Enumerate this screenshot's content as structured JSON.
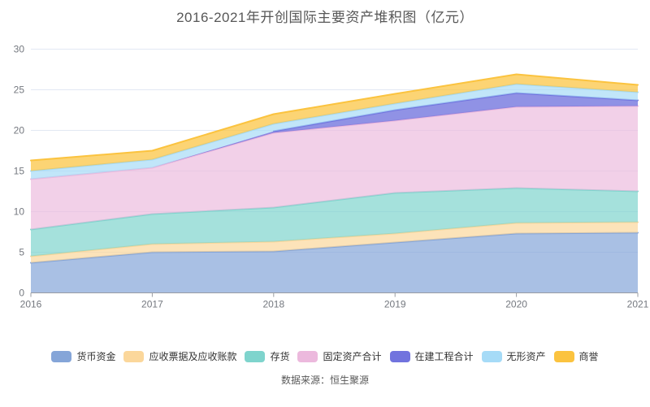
{
  "title": "2016-2021年开创国际主要资产堆积图（亿元）",
  "source": "数据来源：恒生聚源",
  "legend": {
    "items": [
      "货币资金",
      "应收票据及应收账款",
      "存货",
      "固定资产合计",
      "在建工程合计",
      "无形资产",
      "商誉"
    ]
  },
  "colors": {
    "grid_line": "#e2e8f3",
    "axis_line": "#999ca3",
    "axis_label": "#74787f",
    "title_text": "#575757",
    "legend_text": "#333333",
    "source_text": "#595959",
    "background": "#ffffff"
  },
  "chart_data": {
    "type": "area",
    "stacked": true,
    "title": "2016-2021年开创国际主要资产堆积图（亿元）",
    "x": [
      "2016",
      "2017",
      "2018",
      "2019",
      "2020",
      "2021"
    ],
    "xlabel": "",
    "ylabel": "",
    "ylim": [
      0,
      30
    ],
    "y_ticks": [
      0,
      5,
      10,
      15,
      20,
      25,
      30
    ],
    "grid": true,
    "legend_position": "bottom",
    "series": [
      {
        "name": "货币资金",
        "color": "#85a5d8",
        "fill_opacity": 0.7,
        "values": [
          3.7,
          5.0,
          5.1,
          6.2,
          7.3,
          7.4
        ]
      },
      {
        "name": "应收票据及应收账款",
        "color": "#fbd79b",
        "fill_opacity": 0.7,
        "values": [
          0.8,
          1.0,
          1.2,
          1.1,
          1.3,
          1.3
        ]
      },
      {
        "name": "存货",
        "color": "#7fd4cd",
        "fill_opacity": 0.7,
        "values": [
          3.3,
          3.7,
          4.2,
          5.0,
          4.3,
          3.8
        ]
      },
      {
        "name": "固定资产合计",
        "color": "#ecb9dd",
        "fill_opacity": 0.68,
        "values": [
          6.2,
          5.7,
          9.2,
          8.9,
          10.0,
          10.5
        ]
      },
      {
        "name": "在建工程合计",
        "color": "#7173de",
        "fill_opacity": 0.78,
        "values": [
          null,
          null,
          0.2,
          1.3,
          1.7,
          0.7
        ]
      },
      {
        "name": "无形资产",
        "color": "#a6dbf7",
        "fill_opacity": 0.7,
        "values": [
          1.0,
          1.0,
          0.9,
          0.8,
          1.1,
          1.0
        ]
      },
      {
        "name": "商誉",
        "color": "#fbc33f",
        "fill_opacity": 0.72,
        "values": [
          1.3,
          1.1,
          1.2,
          1.2,
          1.2,
          0.9
        ]
      }
    ]
  }
}
